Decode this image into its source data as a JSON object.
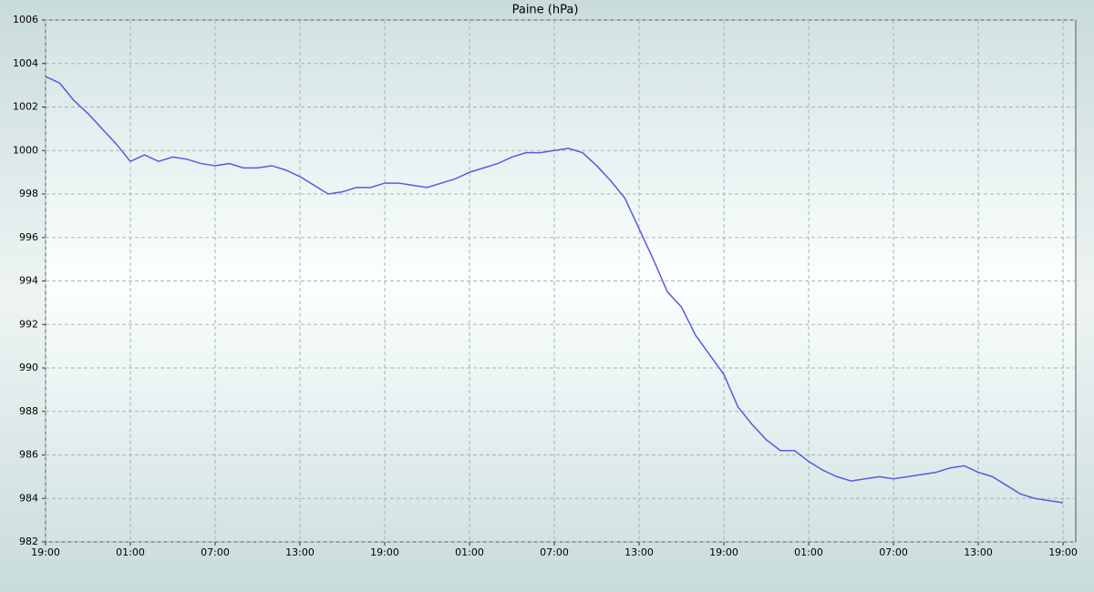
{
  "chart_data": {
    "type": "line",
    "title": "Paine (hPa)",
    "x": [
      0,
      1,
      2,
      3,
      4,
      5,
      6,
      7,
      8,
      9,
      10,
      11,
      12,
      13,
      14,
      15,
      16,
      17,
      18,
      19,
      20,
      21,
      22,
      23,
      24,
      25,
      26,
      27,
      28,
      29,
      30,
      31,
      32,
      33,
      34,
      35,
      36,
      37,
      38,
      39,
      40,
      41,
      42,
      43,
      44,
      45,
      46,
      47,
      48,
      49,
      50,
      51,
      52,
      53,
      54,
      55,
      56,
      57,
      58,
      59,
      60,
      61,
      62,
      63,
      64,
      65,
      66,
      67,
      68,
      69,
      70,
      71,
      72
    ],
    "series": [
      {
        "color": "#5a5ae0",
        "values": [
          1003.4,
          1003.1,
          1002.3,
          1001.7,
          1001.0,
          1000.3,
          999.5,
          999.8,
          999.5,
          999.7,
          999.6,
          999.4,
          999.3,
          999.4,
          999.2,
          999.2,
          999.3,
          999.1,
          998.8,
          998.4,
          998.0,
          998.1,
          998.3,
          998.3,
          998.5,
          998.5,
          998.4,
          998.3,
          998.5,
          998.7,
          999.0,
          999.2,
          999.4,
          999.7,
          999.9,
          999.9,
          1000.0,
          1000.1,
          999.9,
          999.3,
          998.6,
          997.8,
          996.4,
          995.0,
          993.5,
          992.8,
          991.5,
          990.6,
          989.7,
          988.2,
          987.4,
          986.7,
          986.2,
          986.2,
          985.7,
          985.3,
          985.0,
          984.8,
          984.9,
          985.0,
          984.9,
          985.0,
          985.1,
          985.2,
          985.4,
          985.5,
          985.2,
          985.0,
          984.6,
          984.2,
          984.0,
          983.9,
          983.8
        ]
      }
    ],
    "xlim": [
      0,
      72.9
    ],
    "xticks": [
      {
        "value": 0,
        "label": "19:00"
      },
      {
        "value": 6,
        "label": "01:00"
      },
      {
        "value": 12,
        "label": "07:00"
      },
      {
        "value": 18,
        "label": "13:00"
      },
      {
        "value": 24,
        "label": "19:00"
      },
      {
        "value": 30,
        "label": "01:00"
      },
      {
        "value": 36,
        "label": "07:00"
      },
      {
        "value": 42,
        "label": "13:00"
      },
      {
        "value": 48,
        "label": "19:00"
      },
      {
        "value": 54,
        "label": "01:00"
      },
      {
        "value": 60,
        "label": "07:00"
      },
      {
        "value": 66,
        "label": "13:00"
      },
      {
        "value": 72,
        "label": "19:00"
      }
    ],
    "ylim": [
      982,
      1006
    ],
    "yticks": [
      982,
      984,
      986,
      988,
      990,
      992,
      994,
      996,
      998,
      1000,
      1002,
      1004,
      1006
    ],
    "grid": true
  }
}
